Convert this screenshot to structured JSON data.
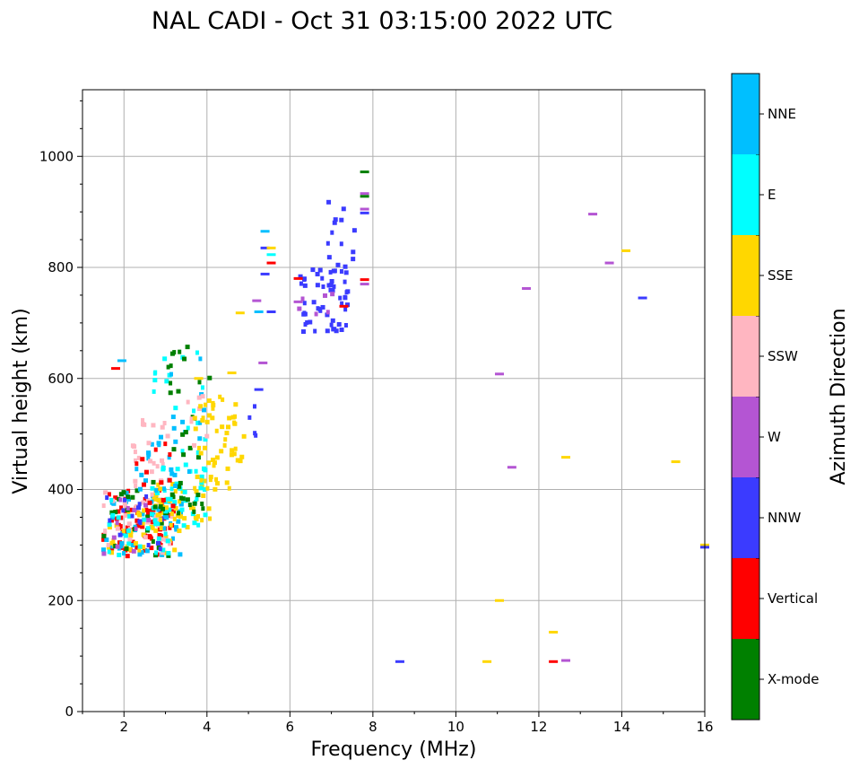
{
  "chart_data": {
    "type": "scatter",
    "title": "NAL CADI - Oct 31 03:15:00 2022 UTC",
    "xlabel": "Frequency (MHz)",
    "ylabel": "Virtual height (km)",
    "xlim": [
      1,
      16
    ],
    "ylim": [
      0,
      1120
    ],
    "xticks": [
      2,
      4,
      6,
      8,
      10,
      12,
      14,
      16
    ],
    "yticks": [
      0,
      200,
      400,
      600,
      800,
      1000
    ],
    "grid": true,
    "colorbar": {
      "label": "Azimuth Direction",
      "categories": [
        {
          "name": "X-mode",
          "color": "#008000"
        },
        {
          "name": "Vertical",
          "color": "#ff0000"
        },
        {
          "name": "NNW",
          "color": "#3b3bff"
        },
        {
          "name": "W",
          "color": "#b455d3"
        },
        {
          "name": "SSW",
          "color": "#ffb6c1"
        },
        {
          "name": "SSE",
          "color": "#ffd700"
        },
        {
          "name": "E",
          "color": "#00ffff"
        },
        {
          "name": "NNE",
          "color": "#00bfff"
        }
      ]
    },
    "isolated_echoes": [
      {
        "x": 1.8,
        "y": 618,
        "dir": "Vertical"
      },
      {
        "x": 1.95,
        "y": 632,
        "dir": "NNE"
      },
      {
        "x": 3.8,
        "y": 600,
        "dir": "SSE"
      },
      {
        "x": 4.6,
        "y": 610,
        "dir": "SSE"
      },
      {
        "x": 4.8,
        "y": 718,
        "dir": "SSE"
      },
      {
        "x": 5.2,
        "y": 740,
        "dir": "W"
      },
      {
        "x": 5.35,
        "y": 628,
        "dir": "W"
      },
      {
        "x": 5.25,
        "y": 580,
        "dir": "NNW"
      },
      {
        "x": 5.4,
        "y": 865,
        "dir": "NNE"
      },
      {
        "x": 5.4,
        "y": 835,
        "dir": "NNW"
      },
      {
        "x": 5.55,
        "y": 835,
        "dir": "SSE"
      },
      {
        "x": 5.55,
        "y": 823,
        "dir": "E"
      },
      {
        "x": 5.55,
        "y": 808,
        "dir": "Vertical"
      },
      {
        "x": 5.4,
        "y": 788,
        "dir": "NNW"
      },
      {
        "x": 5.25,
        "y": 720,
        "dir": "NNE"
      },
      {
        "x": 5.55,
        "y": 720,
        "dir": "NNW"
      },
      {
        "x": 7.8,
        "y": 972,
        "dir": "X-mode"
      },
      {
        "x": 7.8,
        "y": 933,
        "dir": "W"
      },
      {
        "x": 7.8,
        "y": 928,
        "dir": "X-mode"
      },
      {
        "x": 7.8,
        "y": 905,
        "dir": "W"
      },
      {
        "x": 7.8,
        "y": 898,
        "dir": "NNW"
      },
      {
        "x": 7.8,
        "y": 778,
        "dir": "Vertical"
      },
      {
        "x": 7.8,
        "y": 770,
        "dir": "W"
      },
      {
        "x": 7.3,
        "y": 730,
        "dir": "Vertical"
      },
      {
        "x": 6.2,
        "y": 780,
        "dir": "Vertical"
      },
      {
        "x": 6.2,
        "y": 738,
        "dir": "W"
      },
      {
        "x": 11.05,
        "y": 608,
        "dir": "W"
      },
      {
        "x": 11.35,
        "y": 440,
        "dir": "W"
      },
      {
        "x": 11.7,
        "y": 762,
        "dir": "W"
      },
      {
        "x": 11.05,
        "y": 200,
        "dir": "SSE"
      },
      {
        "x": 13.3,
        "y": 896,
        "dir": "W"
      },
      {
        "x": 13.7,
        "y": 808,
        "dir": "W"
      },
      {
        "x": 14.1,
        "y": 830,
        "dir": "SSE"
      },
      {
        "x": 14.5,
        "y": 745,
        "dir": "NNW"
      },
      {
        "x": 12.65,
        "y": 458,
        "dir": "SSE"
      },
      {
        "x": 15.3,
        "y": 450,
        "dir": "SSE"
      },
      {
        "x": 16.0,
        "y": 300,
        "dir": "SSE"
      },
      {
        "x": 16.0,
        "y": 296,
        "dir": "NNW"
      },
      {
        "x": 12.35,
        "y": 143,
        "dir": "SSE"
      },
      {
        "x": 12.35,
        "y": 90,
        "dir": "Vertical"
      },
      {
        "x": 12.65,
        "y": 92,
        "dir": "W"
      },
      {
        "x": 10.75,
        "y": 90,
        "dir": "SSE"
      },
      {
        "x": 8.65,
        "y": 90,
        "dir": "NNW"
      }
    ],
    "clusters": [
      {
        "dir": "Vertical",
        "count": 70,
        "x": [
          1.5,
          3.2
        ],
        "y": [
          280,
          400
        ]
      },
      {
        "dir": "NNE",
        "count": 45,
        "x": [
          1.5,
          3.4
        ],
        "y": [
          280,
          400
        ]
      },
      {
        "dir": "SSE",
        "count": 35,
        "x": [
          1.6,
          3.4
        ],
        "y": [
          285,
          370
        ]
      },
      {
        "dir": "SSW",
        "count": 30,
        "x": [
          1.5,
          3.2
        ],
        "y": [
          285,
          400
        ]
      },
      {
        "dir": "X-mode",
        "count": 25,
        "x": [
          1.5,
          3.2
        ],
        "y": [
          280,
          400
        ]
      },
      {
        "dir": "E",
        "count": 25,
        "x": [
          1.5,
          3.2
        ],
        "y": [
          280,
          390
        ]
      },
      {
        "dir": "W",
        "count": 12,
        "x": [
          1.5,
          3.0
        ],
        "y": [
          285,
          400
        ]
      },
      {
        "dir": "NNW",
        "count": 15,
        "x": [
          1.5,
          3.0
        ],
        "y": [
          285,
          400
        ]
      },
      {
        "dir": "SSE",
        "count": 40,
        "x": [
          2.7,
          4.3
        ],
        "y": [
          330,
          420
        ]
      },
      {
        "dir": "E",
        "count": 30,
        "x": [
          2.6,
          4.0
        ],
        "y": [
          335,
          440
        ]
      },
      {
        "dir": "X-mode",
        "count": 18,
        "x": [
          2.6,
          4.0
        ],
        "y": [
          340,
          420
        ]
      },
      {
        "dir": "NNE",
        "count": 20,
        "x": [
          2.3,
          3.3
        ],
        "y": [
          370,
          500
        ]
      },
      {
        "dir": "SSW",
        "count": 22,
        "x": [
          2.2,
          3.1
        ],
        "y": [
          400,
          530
        ]
      },
      {
        "dir": "Vertical",
        "count": 12,
        "x": [
          2.3,
          3.3
        ],
        "y": [
          370,
          520
        ]
      },
      {
        "dir": "E",
        "count": 22,
        "x": [
          2.7,
          4.0
        ],
        "y": [
          430,
          660
        ]
      },
      {
        "dir": "NNE",
        "count": 12,
        "x": [
          3.0,
          4.0
        ],
        "y": [
          430,
          640
        ]
      },
      {
        "dir": "X-mode",
        "count": 20,
        "x": [
          3.0,
          4.1
        ],
        "y": [
          440,
          660
        ]
      },
      {
        "dir": "SSW",
        "count": 8,
        "x": [
          3.4,
          4.0
        ],
        "y": [
          480,
          580
        ]
      },
      {
        "dir": "SSE",
        "count": 55,
        "x": [
          3.7,
          4.9
        ],
        "y": [
          400,
          570
        ]
      },
      {
        "dir": "NNW",
        "count": 4,
        "x": [
          5.0,
          5.2
        ],
        "y": [
          470,
          560
        ]
      },
      {
        "dir": "NNW",
        "count": 55,
        "x": [
          6.2,
          7.4
        ],
        "y": [
          685,
          800
        ]
      },
      {
        "dir": "NNW",
        "count": 14,
        "x": [
          6.9,
          7.6
        ],
        "y": [
          800,
          920
        ]
      },
      {
        "dir": "W",
        "count": 6,
        "x": [
          6.2,
          7.6
        ],
        "y": [
          700,
          790
        ]
      }
    ]
  }
}
